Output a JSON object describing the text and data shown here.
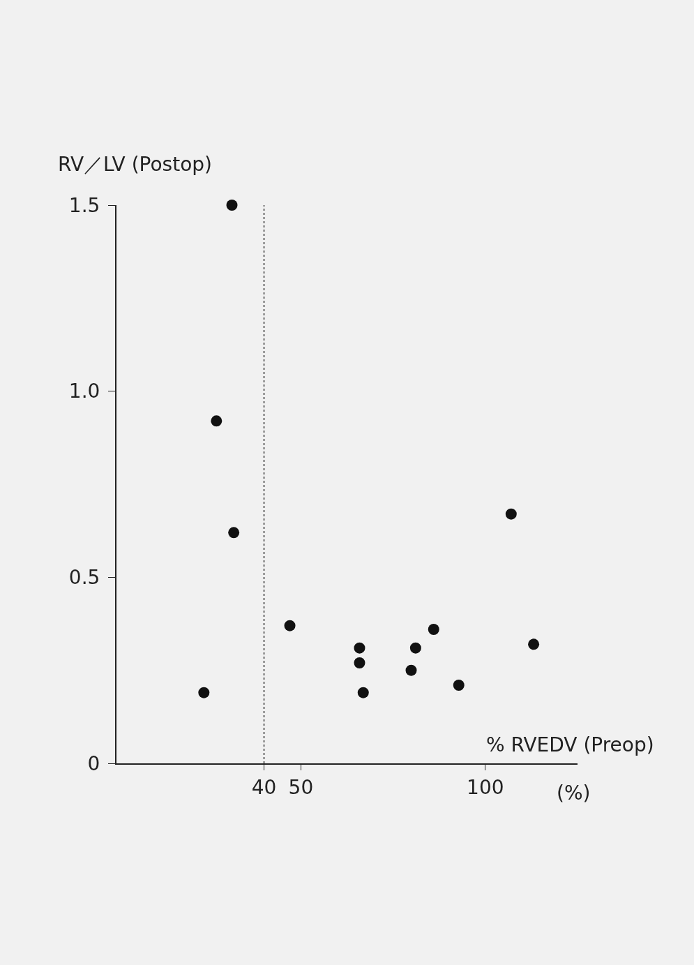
{
  "chart_data": {
    "type": "scatter",
    "xlabel": "% RVEDV (Preop)",
    "ylabel": "RV／LV (Postop)",
    "x": [
      31.3,
      27.1,
      31.8,
      23.7,
      47.0,
      65.9,
      65.9,
      66.9,
      79.9,
      81.1,
      86.0,
      92.8,
      107.0,
      113.1
    ],
    "series": [
      {
        "color": "#111111",
        "values": [
          1.5,
          0.92,
          0.62,
          0.19,
          0.37,
          0.31,
          0.27,
          0.19,
          0.25,
          0.31,
          0.36,
          0.21,
          0.67,
          0.32
        ]
      }
    ],
    "xlim": [
      0,
      125
    ],
    "xticks": [
      40,
      50,
      100
    ],
    "ylim": [
      0,
      1.5
    ],
    "yticks": [
      0,
      {
        "value": 0.5,
        "label": "0.5"
      },
      {
        "value": 1,
        "label": "1.0"
      },
      1.5
    ],
    "ref_lines": [
      {
        "axis": "x",
        "value": 40,
        "color": "#333333",
        "line_style": "dotted"
      }
    ],
    "annotations": [
      "(%)"
    ],
    "marker": "circle",
    "grid": false
  }
}
